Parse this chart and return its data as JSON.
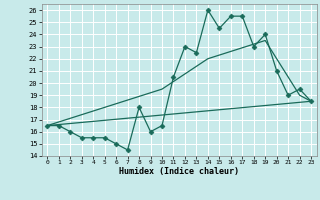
{
  "xlabel": "Humidex (Indice chaleur)",
  "bg_color": "#c8eaea",
  "line_color": "#1a6b5a",
  "grid_color": "#b0d0d0",
  "xlim": [
    -0.5,
    23.5
  ],
  "ylim": [
    14,
    26.5
  ],
  "xticks": [
    0,
    1,
    2,
    3,
    4,
    5,
    6,
    7,
    8,
    9,
    10,
    11,
    12,
    13,
    14,
    15,
    16,
    17,
    18,
    19,
    20,
    21,
    22,
    23
  ],
  "yticks": [
    14,
    15,
    16,
    17,
    18,
    19,
    20,
    21,
    22,
    23,
    24,
    25,
    26
  ],
  "main_x": [
    0,
    1,
    2,
    3,
    4,
    5,
    6,
    7,
    8,
    9,
    10,
    11,
    12,
    13,
    14,
    15,
    16,
    17,
    18,
    19,
    20,
    21,
    22,
    23
  ],
  "main_y": [
    16.5,
    16.5,
    16.0,
    15.5,
    15.5,
    15.5,
    15.0,
    14.5,
    18.0,
    16.0,
    16.5,
    20.5,
    23.0,
    22.5,
    26.0,
    24.5,
    25.5,
    25.5,
    23.0,
    24.0,
    21.0,
    19.0,
    19.5,
    18.5
  ],
  "line2_x": [
    0,
    23
  ],
  "line2_y": [
    16.5,
    18.5
  ],
  "line3_x": [
    0,
    10,
    14,
    19,
    22,
    23
  ],
  "line3_y": [
    16.5,
    19.5,
    22.0,
    23.5,
    19.0,
    18.5
  ]
}
